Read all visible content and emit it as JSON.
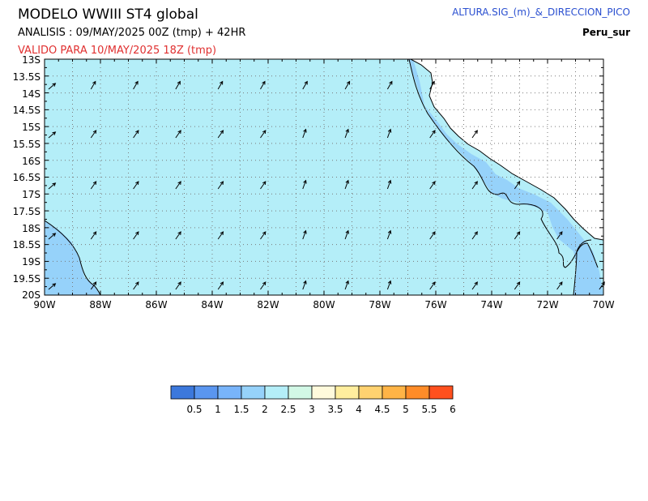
{
  "header": {
    "title": "MODELO  WWIII  ST4  global",
    "analysis": "ANALISIS : 09/MAY/2025 00Z   (tmp) + 42HR",
    "valid": "VALIDO PARA  10/MAY/2025 18Z  (tmp)",
    "variable": "ALTURA.SIG_(m)_&_DIRECCION_PICO",
    "region": "Peru_sur"
  },
  "map": {
    "lat_labels": [
      "13S",
      "13.5S",
      "14S",
      "14.5S",
      "15S",
      "15.5S",
      "16S",
      "16.5S",
      "17S",
      "17.5S",
      "18S",
      "18.5S",
      "19S",
      "19.5S",
      "20S"
    ],
    "lon_labels": [
      "90W",
      "88W",
      "86W",
      "84W",
      "82W",
      "80W",
      "78W",
      "76W",
      "74W",
      "72W",
      "70W"
    ],
    "colors": {
      "sea_2_25": "#b4eef8",
      "sea_15_2": "#96d2fa",
      "land": "#ffffff",
      "coast": "#000000"
    }
  },
  "legend": {
    "labels": [
      "0.5",
      "1",
      "1.5",
      "2",
      "2.5",
      "3",
      "3.5",
      "4",
      "4.5",
      "5",
      "5.5",
      "6"
    ],
    "colors": [
      "#3c78dc",
      "#5a96f0",
      "#78b4fa",
      "#96d2fa",
      "#b4eef8",
      "#d2f8e6",
      "#fffadc",
      "#ffee9e",
      "#ffd270",
      "#ffb446",
      "#ff8c28",
      "#ff501e"
    ]
  }
}
